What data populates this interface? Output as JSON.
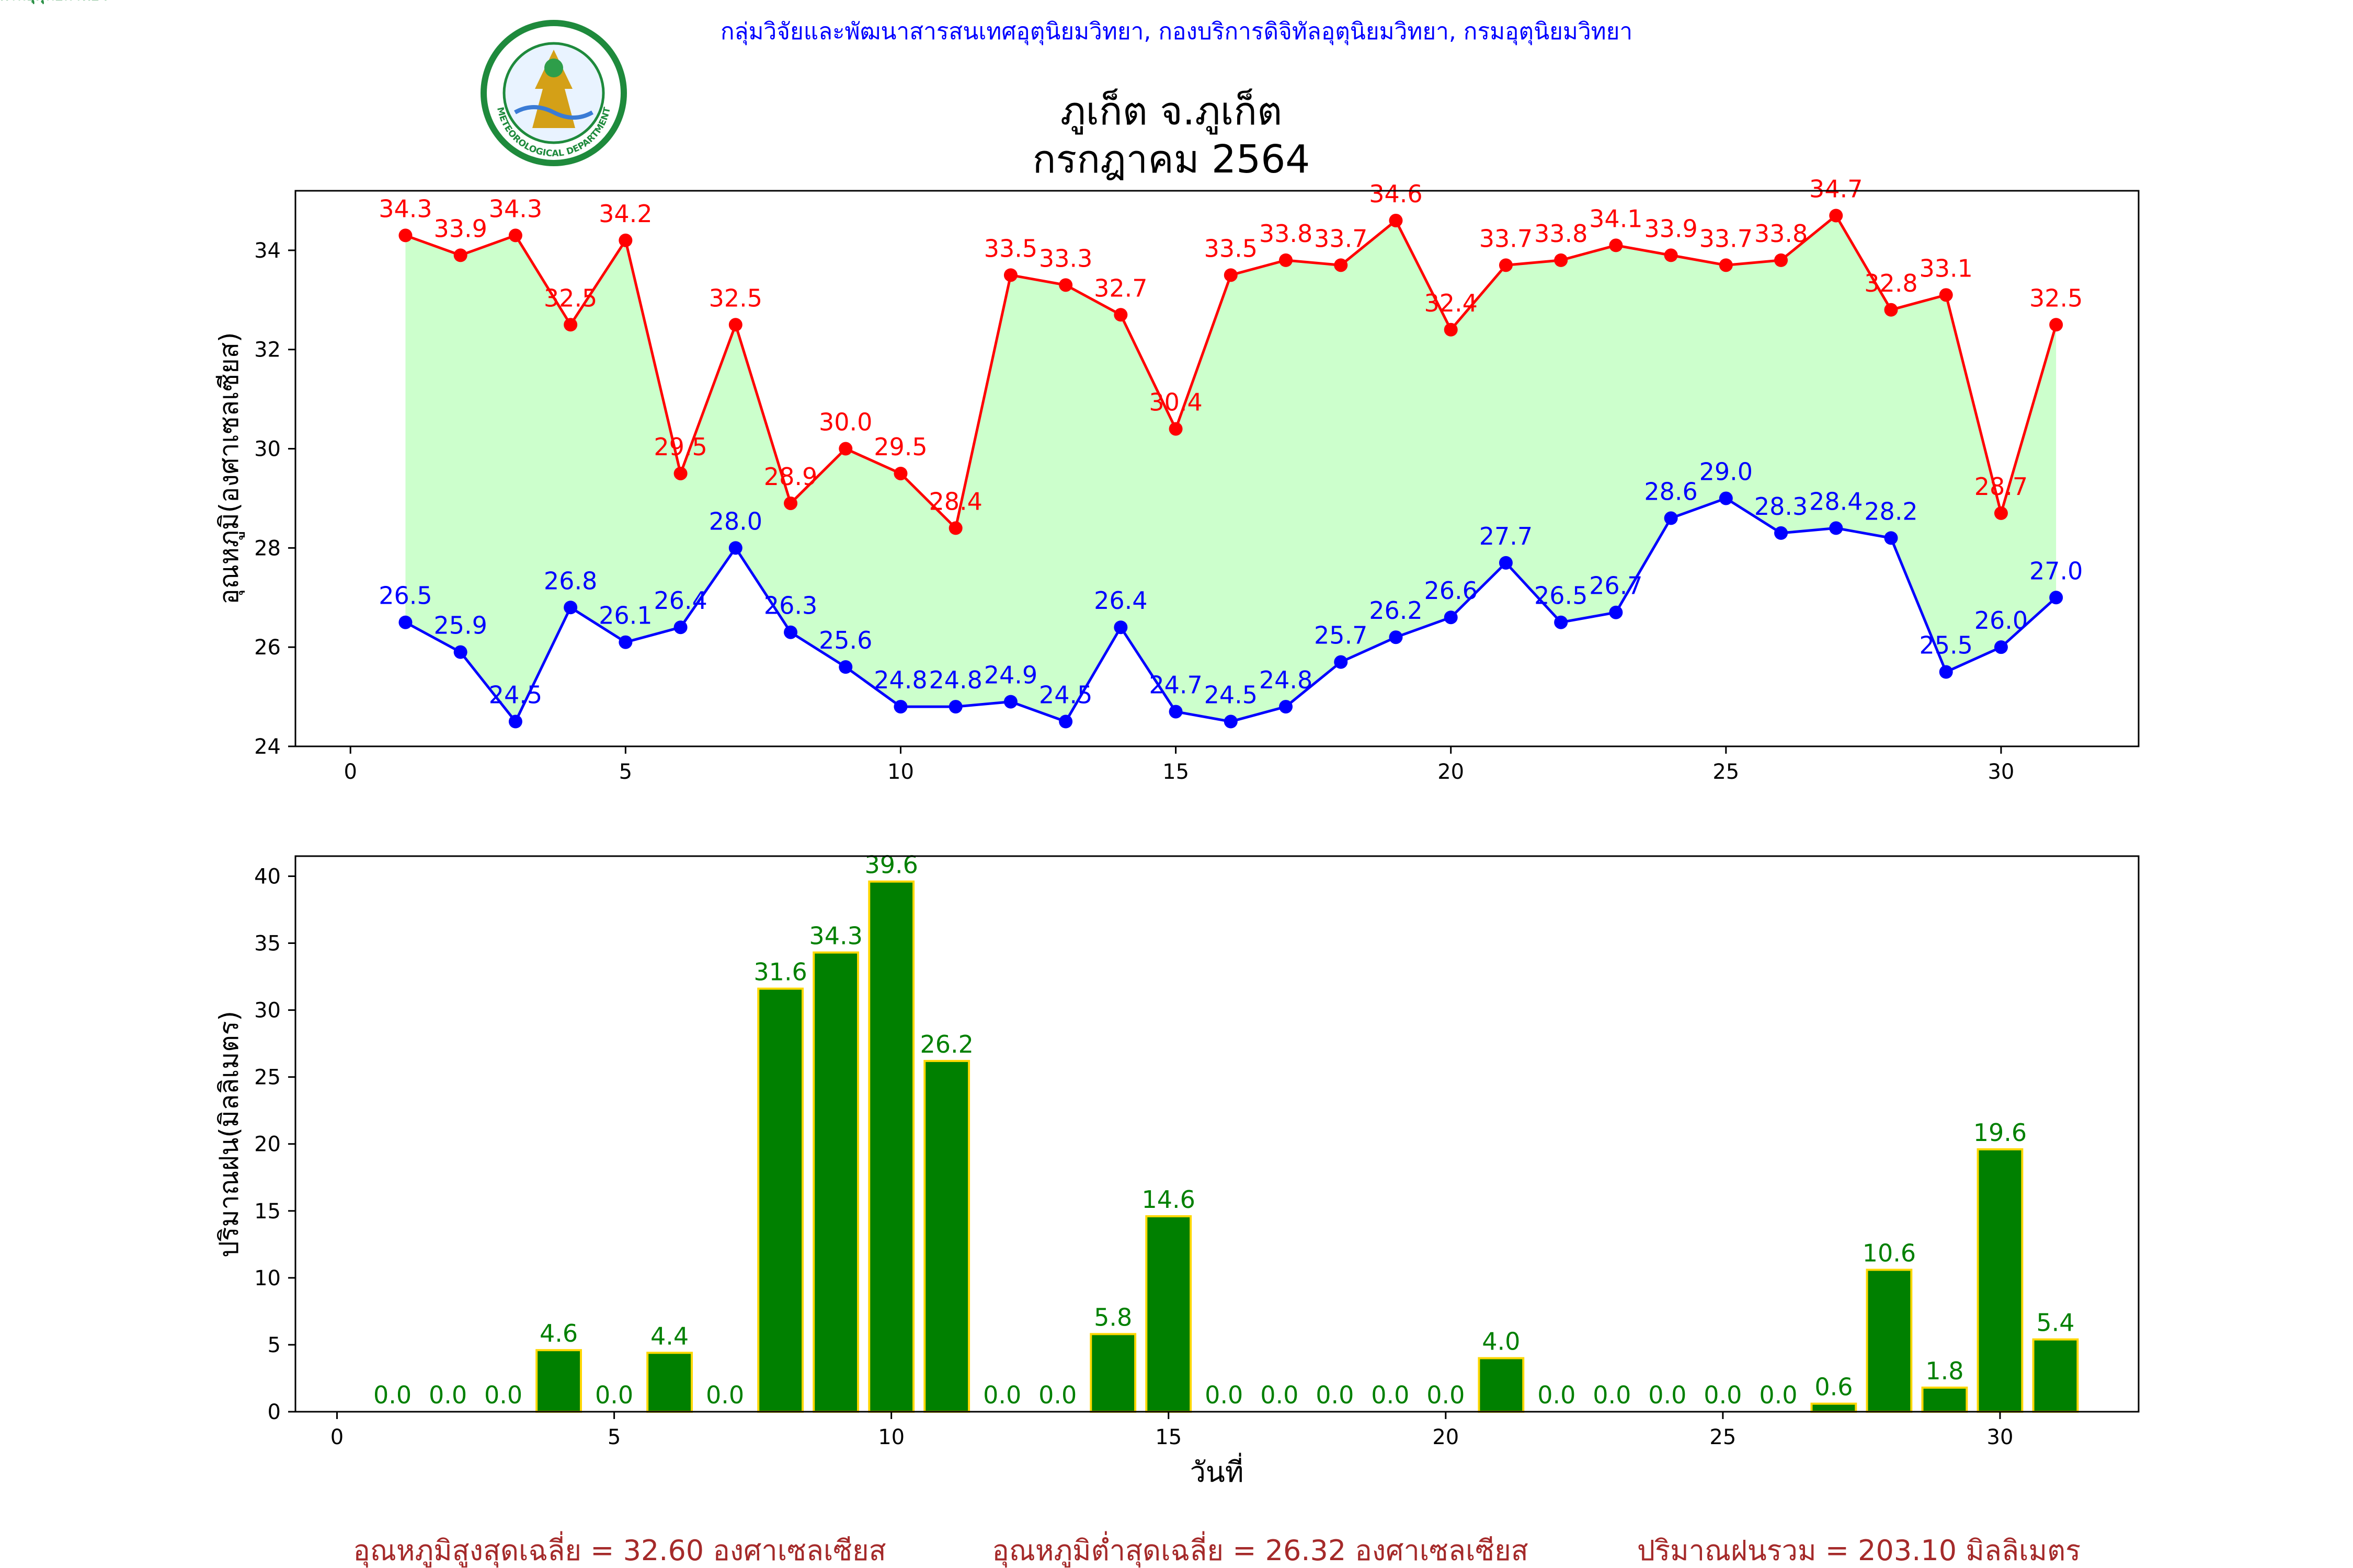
{
  "header": {
    "agency": "กลุ่มวิจัยและพัฒนาสารสนเทศอุตุนิยมวิทยา, กองบริการดิจิทัลอุตุนิยมวิทยา, กรมอุตุนิยมวิทยา",
    "station": "ภูเก็ต จ.ภูเก็ต",
    "period": "กรกฎาคม 2564",
    "logo_top_text": "กรมอุตุนิยมวิทยา",
    "logo_bottom_text": "METEOROLOGICAL DEPARTMENT"
  },
  "colors": {
    "max_temp": "#ff0000",
    "min_temp": "#0000ff",
    "fill": "#ccffcc",
    "rain_bar": "#008000",
    "rain_edge": "#ffd700",
    "rain_label": "#008000",
    "header_text": "#0000ff",
    "footer_text": "#a52a2a"
  },
  "chart_data": [
    {
      "type": "line",
      "ylabel": "อุณหภูมิ(องศาเซลเซียส)",
      "xlim": [
        -1,
        32.5
      ],
      "ylim": [
        24,
        35.2
      ],
      "xticks": [
        0,
        5,
        10,
        15,
        20,
        25,
        30
      ],
      "yticks": [
        24,
        26,
        28,
        30,
        32,
        34
      ],
      "fill_between": true,
      "x": [
        1,
        2,
        3,
        4,
        5,
        6,
        7,
        8,
        9,
        10,
        11,
        12,
        13,
        14,
        15,
        16,
        17,
        18,
        19,
        20,
        21,
        22,
        23,
        24,
        25,
        26,
        27,
        28,
        29,
        30,
        31
      ],
      "series": [
        {
          "values": [
            34.3,
            33.9,
            34.3,
            32.5,
            34.2,
            29.5,
            32.5,
            28.9,
            30.0,
            29.5,
            28.4,
            33.5,
            33.3,
            32.7,
            30.4,
            33.5,
            33.8,
            33.7,
            34.6,
            32.4,
            33.7,
            33.8,
            34.1,
            33.9,
            33.7,
            33.8,
            34.7,
            32.8,
            33.1,
            28.7,
            32.5
          ]
        },
        {
          "values": [
            26.5,
            25.9,
            24.5,
            26.8,
            26.1,
            26.4,
            28.0,
            26.3,
            25.6,
            24.8,
            24.8,
            24.9,
            24.5,
            26.4,
            24.7,
            24.5,
            24.8,
            25.7,
            26.2,
            26.6,
            27.7,
            26.5,
            26.7,
            28.6,
            29.0,
            28.3,
            28.4,
            28.2,
            25.5,
            26.0,
            27.0
          ]
        }
      ]
    },
    {
      "type": "bar",
      "xlabel": "วันที่",
      "ylabel": "ปริมาณฝน(มิลลิเมตร)",
      "xlim": [
        -0.75,
        32.5
      ],
      "ylim": [
        0,
        41.5
      ],
      "xticks": [
        0,
        5,
        10,
        15,
        20,
        25,
        30
      ],
      "yticks": [
        0,
        5,
        10,
        15,
        20,
        25,
        30,
        35,
        40
      ],
      "x": [
        1,
        2,
        3,
        4,
        5,
        6,
        7,
        8,
        9,
        10,
        11,
        12,
        13,
        14,
        15,
        16,
        17,
        18,
        19,
        20,
        21,
        22,
        23,
        24,
        25,
        26,
        27,
        28,
        29,
        30,
        31
      ],
      "values": [
        0.0,
        0.0,
        0.0,
        4.6,
        0.0,
        4.4,
        0.0,
        31.6,
        34.3,
        39.6,
        26.2,
        0.0,
        0.0,
        5.8,
        14.6,
        0.0,
        0.0,
        0.0,
        0.0,
        0.0,
        4.0,
        0.0,
        0.0,
        0.0,
        0.0,
        0.0,
        0.6,
        10.6,
        1.8,
        19.6,
        5.4
      ]
    }
  ],
  "footer": {
    "avg_max": "อุณหภูมิสูงสุดเฉลี่ย = 32.60 องศาเซลเซียส",
    "avg_min": "อุณหภูมิต่ำสุดเฉลี่ย = 26.32 องศาเซลเซียส",
    "total_rain": "ปริมาณฝนรวม = 203.10 มิลลิเมตร"
  }
}
